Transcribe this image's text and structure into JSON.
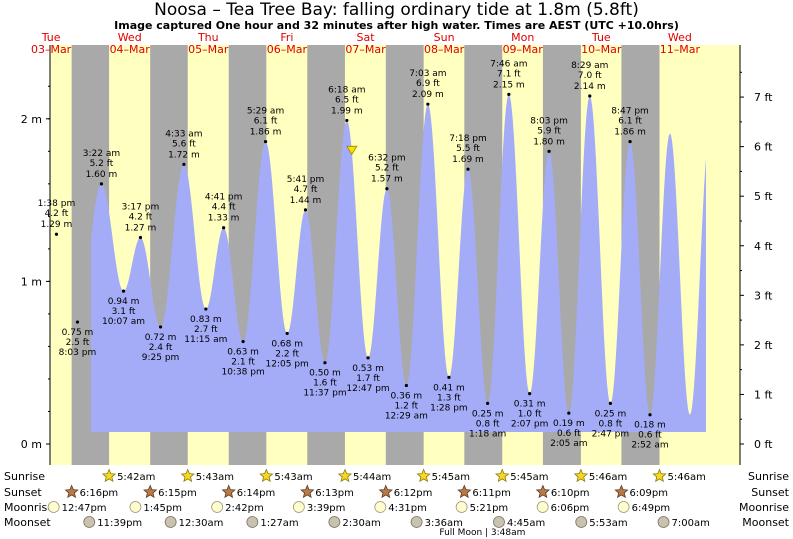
{
  "title": "Noosa – Tea Tree Bay: falling  ordinary tide at 1.8m (5.8ft)",
  "subtitle": "Image captured One hour and 32 minutes after high water. Times are AEST (UTC +10.0hrs)",
  "chart_data": {
    "type": "area",
    "title": "Noosa – Tea Tree Bay: falling  ordinary tide at 1.8m (5.8ft)",
    "left_axis": {
      "unit": "m",
      "ticks": [
        {
          "value": 0,
          "label": "0 m"
        },
        {
          "value": 1,
          "label": "1 m"
        },
        {
          "value": 2,
          "label": "2 m"
        }
      ],
      "ylim": [
        -0.05,
        2.4
      ]
    },
    "right_axis": {
      "unit": "ft",
      "ticks": [
        "0 ft",
        "1 ft",
        "2 ft",
        "3 ft",
        "4 ft",
        "5 ft",
        "6 ft",
        "7 ft"
      ]
    },
    "days": [
      {
        "day": "Tue",
        "date": "03–Mar"
      },
      {
        "day": "Wed",
        "date": "04–Mar"
      },
      {
        "day": "Thu",
        "date": "05–Mar"
      },
      {
        "day": "Fri",
        "date": "06–Mar"
      },
      {
        "day": "Sat",
        "date": "07–Mar"
      },
      {
        "day": "Sun",
        "date": "08–Mar"
      },
      {
        "day": "Mon",
        "date": "09–Mar"
      },
      {
        "day": "Tue",
        "date": "10–Mar"
      },
      {
        "day": "Wed",
        "date": "11–Mar"
      }
    ],
    "tides": [
      {
        "type": "high",
        "time": "1:38 pm",
        "day": 0,
        "hour": 13.63,
        "m": 1.29,
        "ft": "4.2 ft",
        "m_label": "1.29 m"
      },
      {
        "type": "low",
        "time": "8:03 pm",
        "day": 0,
        "hour": 20.05,
        "m": 0.75,
        "ft": "2.5 ft",
        "m_label": "0.75 m"
      },
      {
        "type": "high",
        "time": "3:22 am",
        "day": 1,
        "hour": 3.37,
        "m": 1.6,
        "ft": "5.2 ft",
        "m_label": "1.60 m"
      },
      {
        "type": "low",
        "time": "10:07 am",
        "day": 1,
        "hour": 10.12,
        "m": 0.94,
        "ft": "3.1 ft",
        "m_label": "0.94 m"
      },
      {
        "type": "high",
        "time": "3:17 pm",
        "day": 1,
        "hour": 15.28,
        "m": 1.27,
        "ft": "4.2 ft",
        "m_label": "1.27 m"
      },
      {
        "type": "low",
        "time": "9:25 pm",
        "day": 1,
        "hour": 21.42,
        "m": 0.72,
        "ft": "2.4 ft",
        "m_label": "0.72 m"
      },
      {
        "type": "high",
        "time": "4:33 am",
        "day": 2,
        "hour": 4.55,
        "m": 1.72,
        "ft": "5.6 ft",
        "m_label": "1.72 m"
      },
      {
        "type": "low",
        "time": "11:15 am",
        "day": 2,
        "hour": 11.25,
        "m": 0.83,
        "ft": "2.7 ft",
        "m_label": "0.83 m"
      },
      {
        "type": "high",
        "time": "4:41 pm",
        "day": 2,
        "hour": 16.68,
        "m": 1.33,
        "ft": "4.4 ft",
        "m_label": "1.33 m"
      },
      {
        "type": "low",
        "time": "10:38 pm",
        "day": 2,
        "hour": 22.63,
        "m": 0.63,
        "ft": "2.1 ft",
        "m_label": "0.63 m"
      },
      {
        "type": "high",
        "time": "5:29 am",
        "day": 3,
        "hour": 5.48,
        "m": 1.86,
        "ft": "6.1 ft",
        "m_label": "1.86 m"
      },
      {
        "type": "low",
        "time": "12:05 pm",
        "day": 3,
        "hour": 12.08,
        "m": 0.68,
        "ft": "2.2 ft",
        "m_label": "0.68 m"
      },
      {
        "type": "high",
        "time": "5:41 pm",
        "day": 3,
        "hour": 17.68,
        "m": 1.44,
        "ft": "4.7 ft",
        "m_label": "1.44 m"
      },
      {
        "type": "low",
        "time": "11:37 pm",
        "day": 3,
        "hour": 23.62,
        "m": 0.5,
        "ft": "1.6 ft",
        "m_label": "0.50 m"
      },
      {
        "type": "high",
        "time": "6:18 am",
        "day": 4,
        "hour": 6.3,
        "m": 1.99,
        "ft": "6.5 ft",
        "m_label": "1.99 m"
      },
      {
        "type": "low",
        "time": "12:47 pm",
        "day": 4,
        "hour": 12.78,
        "m": 0.53,
        "ft": "1.7 ft",
        "m_label": "0.53 m"
      },
      {
        "type": "high",
        "time": "6:32 pm",
        "day": 4,
        "hour": 18.53,
        "m": 1.57,
        "ft": "5.2 ft",
        "m_label": "1.57 m"
      },
      {
        "type": "low",
        "time": "12:29 am",
        "day": 5,
        "hour": 0.48,
        "m": 0.36,
        "ft": "1.2 ft",
        "m_label": "0.36 m"
      },
      {
        "type": "high",
        "time": "7:03 am",
        "day": 5,
        "hour": 7.05,
        "m": 2.09,
        "ft": "6.9 ft",
        "m_label": "2.09 m"
      },
      {
        "type": "low",
        "time": "1:28 pm",
        "day": 5,
        "hour": 13.47,
        "m": 0.41,
        "ft": "1.3 ft",
        "m_label": "0.41 m"
      },
      {
        "type": "high",
        "time": "7:18 pm",
        "day": 5,
        "hour": 19.3,
        "m": 1.69,
        "ft": "5.5 ft",
        "m_label": "1.69 m"
      },
      {
        "type": "low",
        "time": "1:18 am",
        "day": 6,
        "hour": 1.3,
        "m": 0.25,
        "ft": "0.8 ft",
        "m_label": "0.25 m"
      },
      {
        "type": "high",
        "time": "7:46 am",
        "day": 6,
        "hour": 7.77,
        "m": 2.15,
        "ft": "7.1 ft",
        "m_label": "2.15 m"
      },
      {
        "type": "low",
        "time": "2:07 pm",
        "day": 6,
        "hour": 14.12,
        "m": 0.31,
        "ft": "1.0 ft",
        "m_label": "0.31 m"
      },
      {
        "type": "high",
        "time": "8:03 pm",
        "day": 6,
        "hour": 20.05,
        "m": 1.8,
        "ft": "5.9 ft",
        "m_label": "1.80 m"
      },
      {
        "type": "low",
        "time": "2:05 am",
        "day": 7,
        "hour": 2.08,
        "m": 0.19,
        "ft": "0.6 ft",
        "m_label": "0.19 m"
      },
      {
        "type": "high",
        "time": "8:29 am",
        "day": 7,
        "hour": 8.48,
        "m": 2.14,
        "ft": "7.0 ft",
        "m_label": "2.14 m"
      },
      {
        "type": "low",
        "time": "2:47 pm",
        "day": 7,
        "hour": 14.78,
        "m": 0.25,
        "ft": "0.8 ft",
        "m_label": "0.25 m"
      },
      {
        "type": "high",
        "time": "8:47 pm",
        "day": 7,
        "hour": 20.78,
        "m": 1.86,
        "ft": "6.1 ft",
        "m_label": "1.86 m"
      },
      {
        "type": "low",
        "time": "2:52 am",
        "day": 8,
        "hour": 2.87,
        "m": 0.18,
        "ft": "0.6 ft",
        "m_label": "0.18 m"
      }
    ],
    "current_marker": {
      "description": "falling ordinary tide",
      "m": 1.8,
      "day": 4,
      "hour": 7.83
    },
    "sun_moon": {
      "row_labels": [
        "Sunrise",
        "Sunset",
        "Moonrise",
        "Moonset"
      ],
      "sunrise": [
        {
          "day": 1,
          "hour": 5.7,
          "time": "5:42am"
        },
        {
          "day": 2,
          "hour": 5.72,
          "time": "5:43am"
        },
        {
          "day": 3,
          "hour": 5.72,
          "time": "5:43am"
        },
        {
          "day": 4,
          "hour": 5.73,
          "time": "5:44am"
        },
        {
          "day": 5,
          "hour": 5.75,
          "time": "5:45am"
        },
        {
          "day": 6,
          "hour": 5.75,
          "time": "5:45am"
        },
        {
          "day": 7,
          "hour": 5.77,
          "time": "5:46am"
        },
        {
          "day": 8,
          "hour": 5.77,
          "time": "5:46am"
        }
      ],
      "sunset": [
        {
          "day": 0,
          "hour": 18.27,
          "time": "6:16pm"
        },
        {
          "day": 1,
          "hour": 18.25,
          "time": "6:15pm"
        },
        {
          "day": 2,
          "hour": 18.23,
          "time": "6:14pm"
        },
        {
          "day": 3,
          "hour": 18.22,
          "time": "6:13pm"
        },
        {
          "day": 4,
          "hour": 18.2,
          "time": "6:12pm"
        },
        {
          "day": 5,
          "hour": 18.18,
          "time": "6:11pm"
        },
        {
          "day": 6,
          "hour": 18.17,
          "time": "6:10pm"
        },
        {
          "day": 7,
          "hour": 18.15,
          "time": "6:09pm"
        }
      ],
      "moonrise": [
        {
          "day": 0,
          "hour": 12.78,
          "time": "12:47pm"
        },
        {
          "day": 1,
          "hour": 13.75,
          "time": "1:45pm"
        },
        {
          "day": 2,
          "hour": 14.7,
          "time": "2:42pm"
        },
        {
          "day": 3,
          "hour": 15.65,
          "time": "3:39pm"
        },
        {
          "day": 4,
          "hour": 16.52,
          "time": "4:31pm"
        },
        {
          "day": 5,
          "hour": 17.35,
          "time": "5:21pm"
        },
        {
          "day": 6,
          "hour": 18.1,
          "time": "6:06pm"
        },
        {
          "day": 7,
          "hour": 18.82,
          "time": "6:49pm"
        }
      ],
      "moonset": [
        {
          "day": 0,
          "hour": 23.65,
          "time": "11:39pm"
        },
        {
          "day": 2,
          "hour": 0.5,
          "time": "12:30am"
        },
        {
          "day": 3,
          "hour": 1.45,
          "time": "1:27am"
        },
        {
          "day": 4,
          "hour": 2.5,
          "time": "2:30am"
        },
        {
          "day": 5,
          "hour": 3.6,
          "time": "3:36am"
        },
        {
          "day": 6,
          "hour": 4.75,
          "time": "4:45am"
        },
        {
          "day": 7,
          "hour": 5.88,
          "time": "5:53am"
        },
        {
          "day": 8,
          "hour": 7.0,
          "time": "7:00am"
        }
      ],
      "full_moon": "Full Moon | 3:48am"
    },
    "colors": {
      "day": "#ffffc0",
      "night": "#a9a9a9",
      "water": "#a4acf8",
      "date_label": "#e00000",
      "sun": "#f5d823",
      "sunset_star": "#b97a49",
      "moon_rise": "#fffcd0",
      "moon_set": "#c9c2b1"
    }
  }
}
